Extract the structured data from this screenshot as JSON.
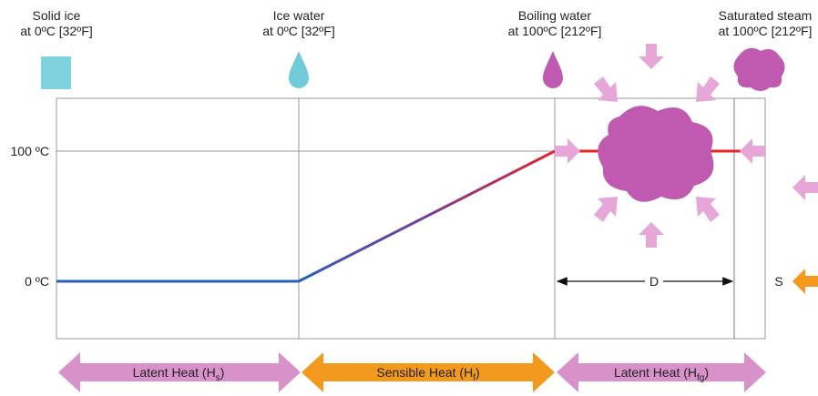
{
  "states": [
    {
      "name": "Solid ice",
      "condition": "at 0ºC [32ºF]"
    },
    {
      "name": "Ice water",
      "condition": "at 0ºC [32ºF]"
    },
    {
      "name": "Boiling water",
      "condition": "at 100ºC [212ºF]"
    },
    {
      "name": "Saturated steam",
      "condition": "at 100ºC [212ºF]"
    }
  ],
  "axis": {
    "upper": "100 ºC",
    "lower": "0 ºC"
  },
  "markers": {
    "d": "D",
    "s": "S"
  },
  "bands": [
    {
      "label": "Latent Heat  (H",
      "sub": "s",
      "close": ")"
    },
    {
      "label": "Sensible Heat  (H",
      "sub": "f",
      "close": ")"
    },
    {
      "label": "Latent Heat  (H",
      "sub": "fg",
      "close": ")"
    }
  ]
}
